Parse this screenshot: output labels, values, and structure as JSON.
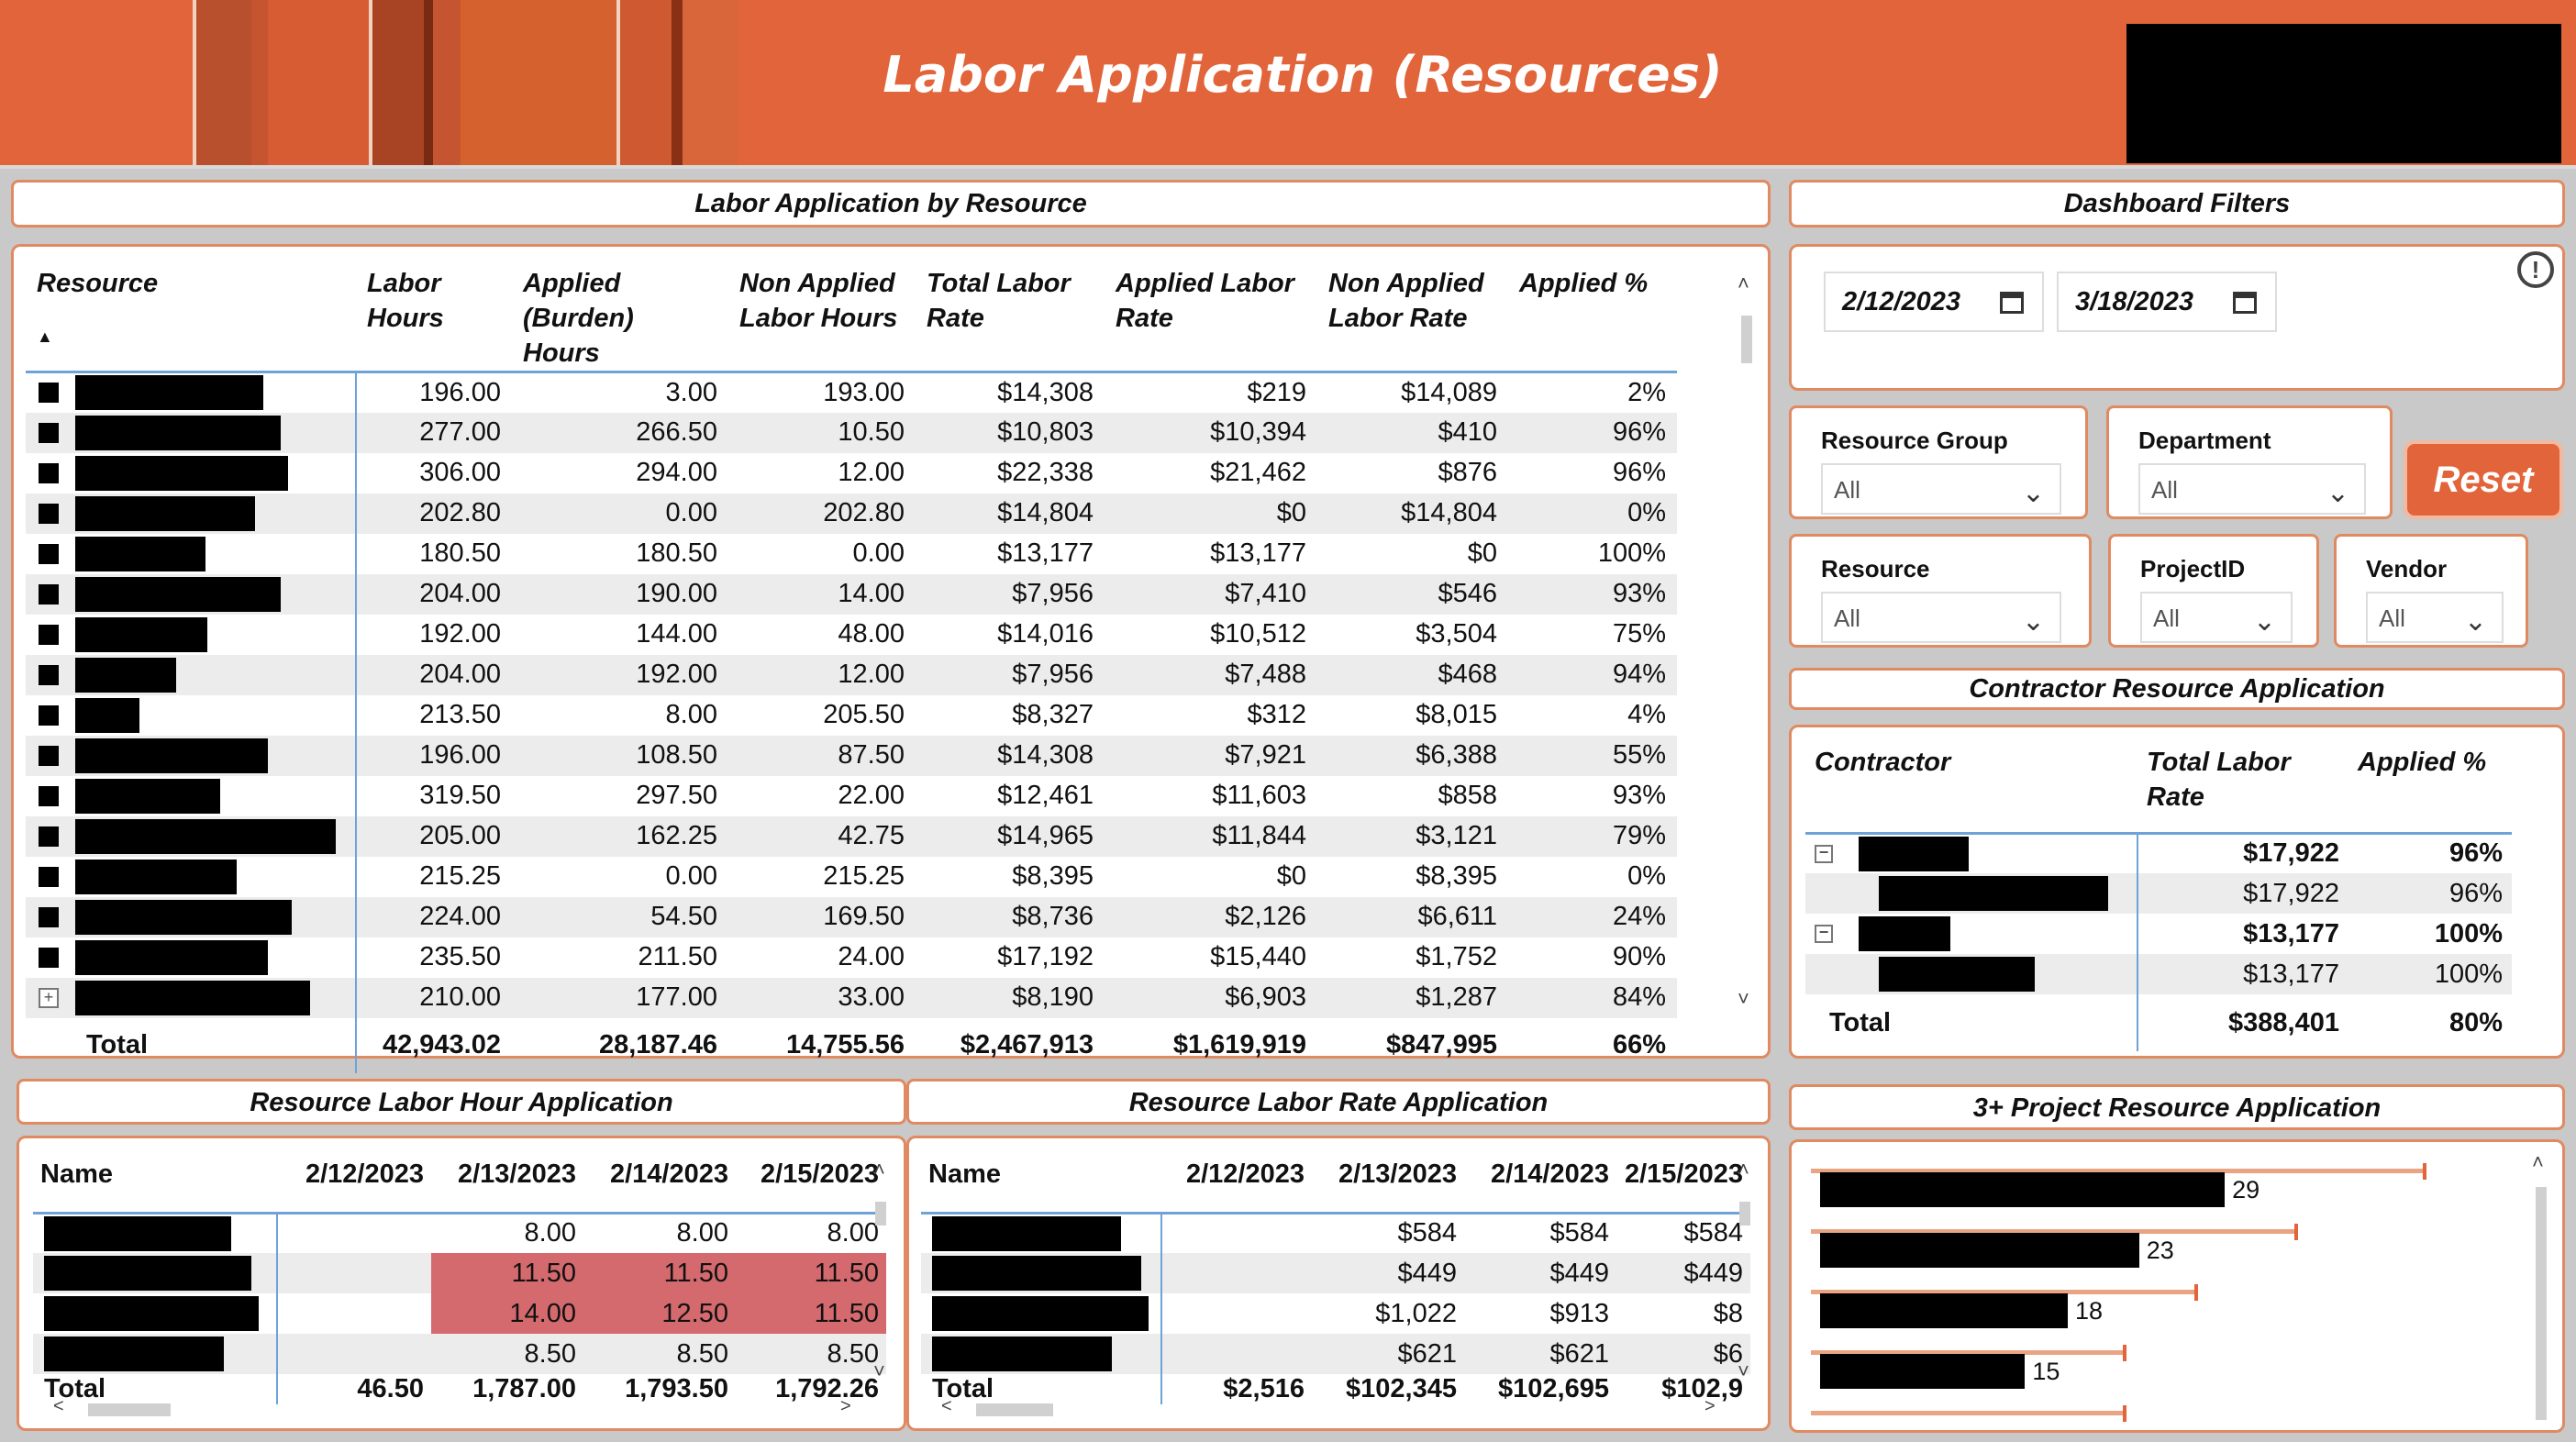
{
  "header": {
    "title": "Labor Application (Resources)"
  },
  "main_table": {
    "title": "Labor Application by Resource",
    "columns": [
      "Resource",
      "Labor Hours",
      "Applied (Burden) Hours",
      "Non Applied Labor Hours",
      "Total Labor Rate",
      "Applied Labor Rate",
      "Non Applied Labor Rate",
      "Applied %"
    ],
    "rows": [
      [
        "196.00",
        "3.00",
        "193.00",
        "$14,308",
        "$219",
        "$14,089",
        "2%"
      ],
      [
        "277.00",
        "266.50",
        "10.50",
        "$10,803",
        "$10,394",
        "$410",
        "96%"
      ],
      [
        "306.00",
        "294.00",
        "12.00",
        "$22,338",
        "$21,462",
        "$876",
        "96%"
      ],
      [
        "202.80",
        "0.00",
        "202.80",
        "$14,804",
        "$0",
        "$14,804",
        "0%"
      ],
      [
        "180.50",
        "180.50",
        "0.00",
        "$13,177",
        "$13,177",
        "$0",
        "100%"
      ],
      [
        "204.00",
        "190.00",
        "14.00",
        "$7,956",
        "$7,410",
        "$546",
        "93%"
      ],
      [
        "192.00",
        "144.00",
        "48.00",
        "$14,016",
        "$10,512",
        "$3,504",
        "75%"
      ],
      [
        "204.00",
        "192.00",
        "12.00",
        "$7,956",
        "$7,488",
        "$468",
        "94%"
      ],
      [
        "213.50",
        "8.00",
        "205.50",
        "$8,327",
        "$312",
        "$8,015",
        "4%"
      ],
      [
        "196.00",
        "108.50",
        "87.50",
        "$14,308",
        "$7,921",
        "$6,388",
        "55%"
      ],
      [
        "319.50",
        "297.50",
        "22.00",
        "$12,461",
        "$11,603",
        "$858",
        "93%"
      ],
      [
        "205.00",
        "162.25",
        "42.75",
        "$14,965",
        "$11,844",
        "$3,121",
        "79%"
      ],
      [
        "215.25",
        "0.00",
        "215.25",
        "$8,395",
        "$0",
        "$8,395",
        "0%"
      ],
      [
        "224.00",
        "54.50",
        "169.50",
        "$8,736",
        "$2,126",
        "$6,611",
        "24%"
      ],
      [
        "235.50",
        "211.50",
        "24.00",
        "$17,192",
        "$15,440",
        "$1,752",
        "90%"
      ],
      [
        "210.00",
        "177.00",
        "33.00",
        "$8,190",
        "$6,903",
        "$1,287",
        "84%"
      ]
    ],
    "total": [
      "Total",
      "42,943.02",
      "28,187.46",
      "14,755.56",
      "$2,467,913",
      "$1,619,919",
      "$847,995",
      "66%"
    ]
  },
  "filters": {
    "title": "Dashboard Filters",
    "start_date": "2/12/2023",
    "end_date": "3/18/2023",
    "resource_group": {
      "label": "Resource Group",
      "value": "All"
    },
    "department": {
      "label": "Department",
      "value": "All"
    },
    "resource": {
      "label": "Resource",
      "value": "All"
    },
    "project": {
      "label": "ProjectID",
      "value": "All"
    },
    "vendor": {
      "label": "Vendor",
      "value": "All"
    },
    "reset_label": "Reset"
  },
  "contractor": {
    "title": "Contractor Resource Application",
    "columns": [
      "Contractor",
      "Total Labor Rate",
      "Applied %"
    ],
    "rows": [
      [
        "$17,922",
        "96%"
      ],
      [
        "$17,922",
        "96%"
      ],
      [
        "$13,177",
        "100%"
      ],
      [
        "$13,177",
        "100%"
      ]
    ],
    "total": [
      "Total",
      "$388,401",
      "80%"
    ]
  },
  "hour_matrix": {
    "title": "Resource Labor Hour Application",
    "columns": [
      "Name",
      "2/12/2023",
      "2/13/2023",
      "2/14/2023",
      "2/15/2023"
    ],
    "rows": [
      [
        "",
        "8.00",
        "8.00",
        "8.00"
      ],
      [
        "",
        "11.50",
        "11.50",
        "11.50"
      ],
      [
        "",
        "14.00",
        "12.50",
        "11.50"
      ],
      [
        "",
        "8.50",
        "8.50",
        "8.50"
      ]
    ],
    "total": [
      "Total",
      "46.50",
      "1,787.00",
      "1,793.50",
      "1,792.26"
    ]
  },
  "rate_matrix": {
    "title": "Resource Labor Rate Application",
    "columns": [
      "Name",
      "2/12/2023",
      "2/13/2023",
      "2/14/2023",
      "2/15/2023"
    ],
    "rows": [
      [
        "",
        "$584",
        "$584",
        "$584"
      ],
      [
        "",
        "$449",
        "$449",
        "$449"
      ],
      [
        "",
        "$1,022",
        "$913",
        "$8"
      ],
      [
        "",
        "$621",
        "$621",
        "$6"
      ]
    ],
    "total": [
      "Total",
      "$2,516",
      "$102,345",
      "$102,695",
      "$102,9"
    ]
  },
  "project_chart": {
    "title": "3+ Project Resource Application",
    "chart_data": {
      "type": "bar",
      "values": [
        29,
        23,
        18,
        15
      ],
      "xlim": [
        0,
        45
      ]
    }
  },
  "colors": {
    "accent": "#e2643a",
    "highlight": "#d46a6e",
    "grid_line": "#6fa3d8"
  }
}
